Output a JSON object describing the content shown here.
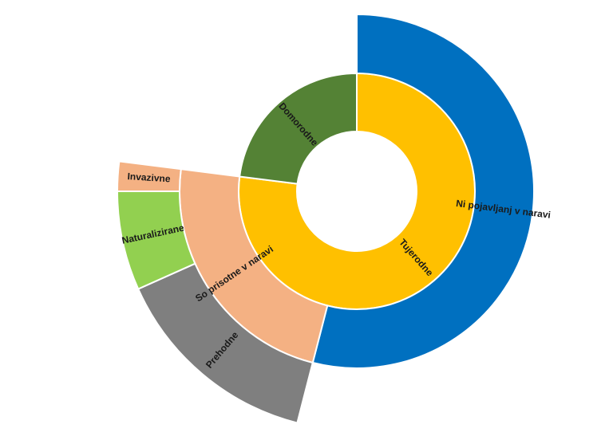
{
  "chart_data": {
    "type": "sunburst",
    "nodes": [
      {
        "name": "Tujerodne",
        "color": "#ffc000",
        "children": [
          {
            "name": "Ni pojavljanj v naravi",
            "color": "#0070c0",
            "value": 54
          },
          {
            "name": "So prisotne v naravi",
            "color": "#f4b183",
            "children": [
              {
                "name": "Prehodne",
                "color": "#7f7f7f",
                "value": 14.3
              },
              {
                "name": "Naturalizirane",
                "color": "#92d050",
                "value": 6.7
              },
              {
                "name": "Invazivne",
                "color": "#f4b183",
                "value": 2
              }
            ]
          }
        ]
      },
      {
        "name": "Domorodne",
        "color": "#548235",
        "value": 23
      }
    ]
  }
}
